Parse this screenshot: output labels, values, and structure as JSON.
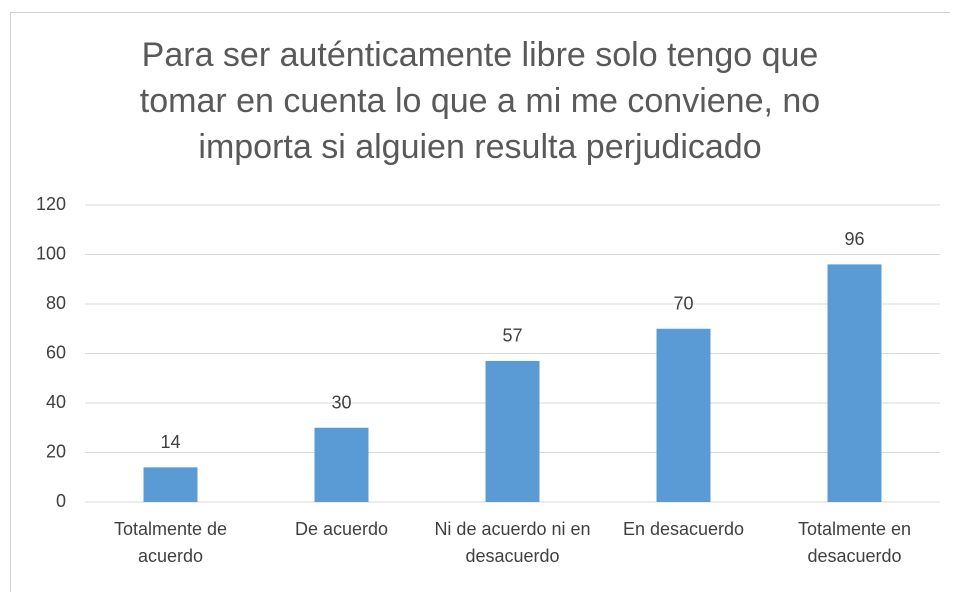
{
  "chart_data": {
    "type": "bar",
    "title": "Para ser auténticamente libre solo tengo que tomar en cuenta lo que a mi me conviene, no importa si alguien resulta perjudicado",
    "categories": [
      "Totalmente de acuerdo",
      "De acuerdo",
      "Ni de acuerdo ni en desacuerdo",
      "En desacuerdo",
      "Totalmente en desacuerdo"
    ],
    "values": [
      14,
      30,
      57,
      70,
      96
    ],
    "color": "#5b9bd5",
    "ylim": [
      0,
      120
    ],
    "yticks": [
      0,
      20,
      40,
      60,
      80,
      100,
      120
    ],
    "grid": true
  }
}
